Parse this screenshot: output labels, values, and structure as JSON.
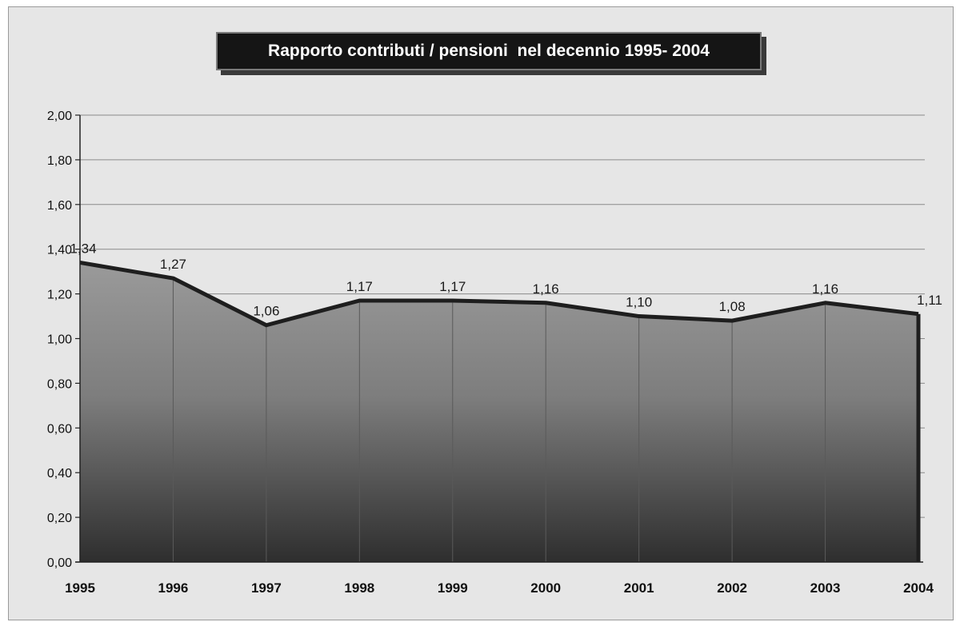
{
  "chart_data": {
    "type": "area",
    "title": "Rapporto contributi / pensioni  nel decennio 1995- 2004",
    "categories": [
      "1995",
      "1996",
      "1997",
      "1998",
      "1999",
      "2000",
      "2001",
      "2002",
      "2003",
      "2004"
    ],
    "values": [
      1.34,
      1.27,
      1.06,
      1.17,
      1.17,
      1.16,
      1.1,
      1.08,
      1.16,
      1.11
    ],
    "data_labels": [
      "1,34",
      "1,27",
      "1,06",
      "1,17",
      "1,17",
      "1,16",
      "1,10",
      "1,08",
      "1,16",
      "1,11"
    ],
    "ylim": [
      0,
      2
    ],
    "yticks": [
      0,
      0.2,
      0.4,
      0.6,
      0.8,
      1.0,
      1.2,
      1.4,
      1.6,
      1.8,
      2.0
    ],
    "ytick_labels": [
      "0,00",
      "0,20",
      "0,40",
      "0,60",
      "0,80",
      "1,00",
      "1,20",
      "1,40",
      "1,60",
      "1,80",
      "2,00"
    ],
    "grid": true,
    "legend": false,
    "xlabel": "",
    "ylabel": "",
    "colors": {
      "area_top": "#9a9a9a",
      "area_bottom": "#2e2e2e",
      "line": "#1e1e1e",
      "grid": "#8a8a8a",
      "plot_bg": "#e6e6e6"
    }
  }
}
